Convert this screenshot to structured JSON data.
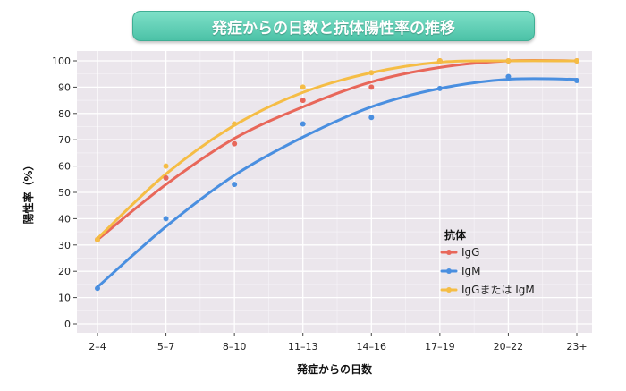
{
  "title": "発症からの日数と抗体陽性率の推移",
  "chart_data": {
    "type": "scatter",
    "categories": [
      "2–4",
      "5–7",
      "8–10",
      "11–13",
      "14–16",
      "17–19",
      "20–22",
      "23+"
    ],
    "xlabel": "発症からの日数",
    "ylabel": "陽性率（%）",
    "ylim": [
      0,
      100
    ],
    "yticks": [
      0,
      10,
      20,
      30,
      40,
      50,
      60,
      70,
      80,
      90,
      100
    ],
    "grid": true,
    "legend_title": "抗体",
    "legend_position": "center-right",
    "series": [
      {
        "name": "IgG",
        "color": "#e8675a",
        "values": [
          32,
          55.5,
          68.5,
          85,
          90,
          100,
          100,
          100
        ],
        "fit": [
          32,
          53,
          70.5,
          82.5,
          92,
          97.5,
          100,
          100
        ]
      },
      {
        "name": "IgM",
        "color": "#4a8fe0",
        "values": [
          13.5,
          40,
          53,
          76,
          78.5,
          89.5,
          94,
          92.5
        ],
        "fit": [
          14,
          37,
          56.5,
          71,
          82.5,
          89.5,
          93,
          93
        ]
      },
      {
        "name": "IgGまたは IgM",
        "color": "#f5bd45",
        "values": [
          32,
          60,
          76,
          90,
          95.5,
          100,
          100,
          100
        ],
        "fit": [
          32.5,
          57,
          75.5,
          88,
          95.5,
          99.5,
          100,
          100
        ]
      }
    ]
  }
}
